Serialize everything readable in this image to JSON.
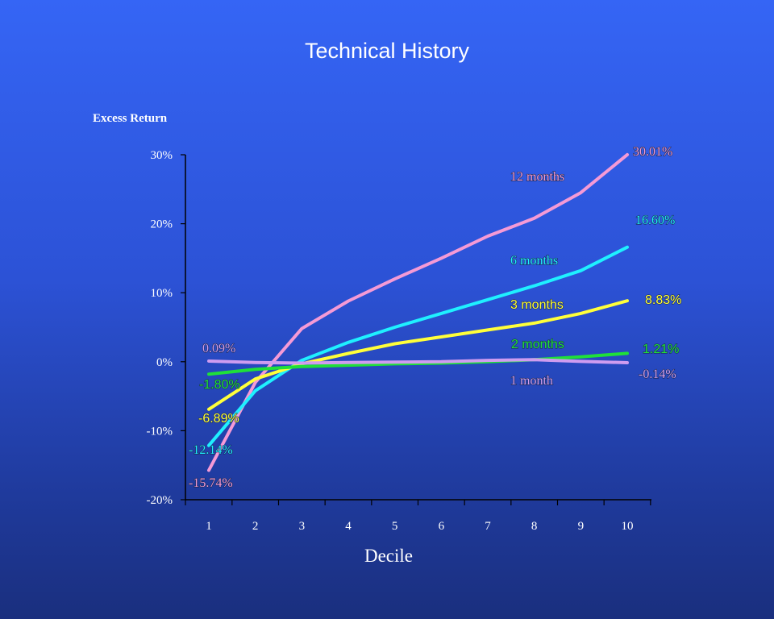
{
  "chart_data": {
    "type": "line",
    "title": "Technical History",
    "ylabel": "Excess Return",
    "xlabel": "Decile",
    "categories": [
      "1",
      "2",
      "3",
      "4",
      "5",
      "6",
      "7",
      "8",
      "9",
      "10"
    ],
    "yticks": [
      "30%",
      "20%",
      "10%",
      "0%",
      "-10%",
      "-20%"
    ],
    "ytick_values": [
      30,
      20,
      10,
      0,
      -10,
      -20
    ],
    "ylim": [
      -20,
      30
    ],
    "grid": false,
    "series": [
      {
        "name": "12 months",
        "color": "#f59ad6",
        "font": "serif",
        "values": [
          -15.74,
          -3.0,
          4.8,
          8.8,
          12.0,
          15.0,
          18.2,
          20.8,
          24.5,
          30.01
        ],
        "start_label": "-15.74%",
        "end_label": "30.01%"
      },
      {
        "name": "6 months",
        "color": "#1ff0ff",
        "font": "serif",
        "values": [
          -12.14,
          -4.2,
          0.2,
          2.8,
          5.0,
          7.0,
          9.0,
          11.0,
          13.2,
          16.6
        ],
        "start_label": "-12.14%",
        "end_label": "16.60%"
      },
      {
        "name": "3 months",
        "color": "#ffff3a",
        "font": "sans",
        "values": [
          -6.89,
          -2.5,
          -0.3,
          1.2,
          2.6,
          3.6,
          4.6,
          5.6,
          7.0,
          8.83
        ],
        "start_label": "-6.89%",
        "end_label": "8.83%"
      },
      {
        "name": "2 months",
        "color": "#1fe039",
        "font": "sans",
        "values": [
          -1.8,
          -1.1,
          -0.7,
          -0.5,
          -0.3,
          -0.2,
          0.0,
          0.3,
          0.7,
          1.21
        ],
        "start_label": "-1.80%",
        "end_label": "1.21%"
      },
      {
        "name": "1 month",
        "color": "#cf9cf0",
        "font": "serif",
        "values": [
          0.09,
          -0.1,
          -0.2,
          -0.1,
          -0.05,
          0.0,
          0.2,
          0.3,
          0.05,
          -0.14
        ],
        "start_label": "0.09%",
        "end_label": "-0.14%"
      }
    ]
  }
}
